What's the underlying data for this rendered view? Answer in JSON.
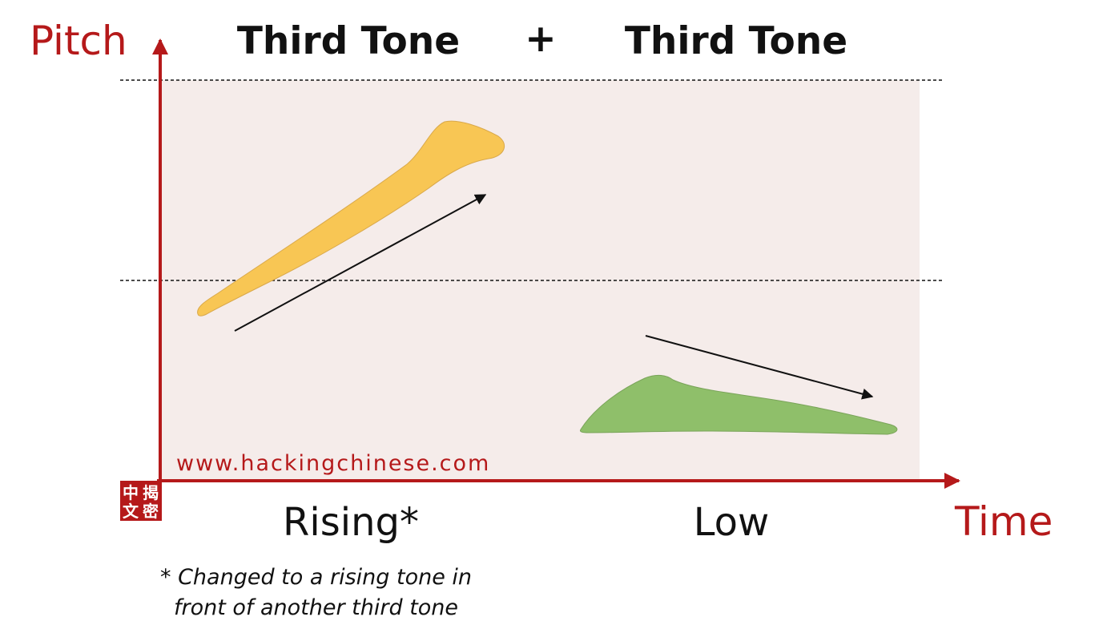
{
  "titles": {
    "left": "Third Tone",
    "plus": "+",
    "right": "Third Tone"
  },
  "axes": {
    "y_label": "Pitch",
    "x_label": "Time"
  },
  "tones": {
    "first_label": "Rising*",
    "second_label": "Low"
  },
  "footnote": {
    "line1": "* Changed to a rising tone in",
    "line2": "front of another third tone"
  },
  "watermark": "www.hackingchinese.com",
  "logo": {
    "chars": [
      "中",
      "揭",
      "文",
      "密"
    ]
  },
  "colors": {
    "axis": "#b5191a",
    "background": "#f5ecea",
    "rising_shape": "#f8c654",
    "low_shape": "#8fbf6a",
    "text": "#111111",
    "watermark": "#b5191a"
  }
}
